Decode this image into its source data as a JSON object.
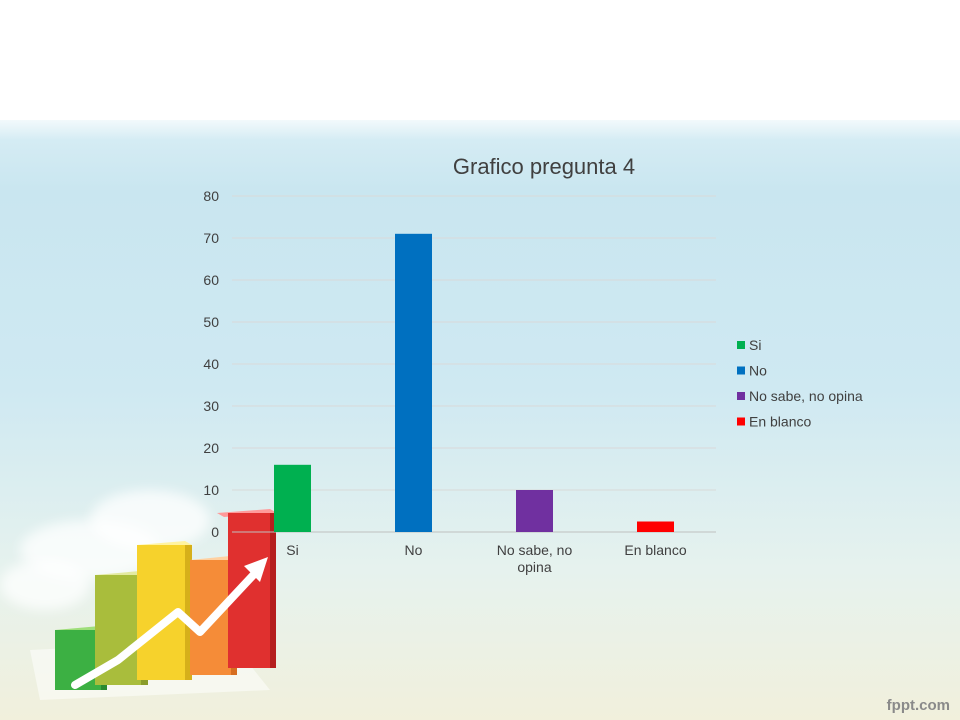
{
  "chart_data": {
    "type": "bar",
    "title": "Grafico pregunta 4",
    "categories": [
      {
        "label_lines": [
          "Si"
        ],
        "value": 16,
        "color": "#00b050"
      },
      {
        "label_lines": [
          "No"
        ],
        "value": 71,
        "color": "#0070c0"
      },
      {
        "label_lines": [
          "No sabe, no",
          "opina"
        ],
        "value": 10,
        "color": "#7030a0"
      },
      {
        "label_lines": [
          "En blanco"
        ],
        "value": 2.5,
        "color": "#ff0000"
      }
    ],
    "legend": [
      {
        "name": "Si",
        "color": "#00b050"
      },
      {
        "name": "No",
        "color": "#0070c0"
      },
      {
        "name": "No sabe, no opina",
        "color": "#7030a0"
      },
      {
        "name": "En blanco",
        "color": "#ff0000"
      }
    ],
    "legend_position": "right",
    "ylim": [
      0,
      80
    ],
    "yticks": [
      0,
      10,
      20,
      30,
      40,
      50,
      60,
      70,
      80
    ],
    "grid": true,
    "xlabel": "",
    "ylabel": ""
  },
  "watermark": "fppt.com",
  "icons": {
    "decoration": "bar-chart-growth-arrow-icon"
  }
}
